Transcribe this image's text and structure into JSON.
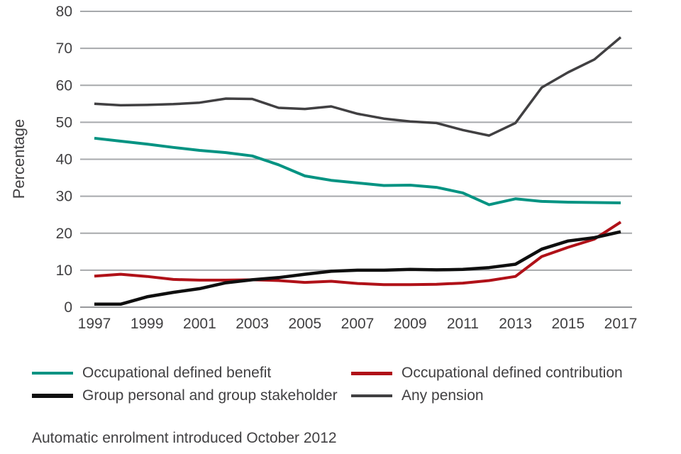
{
  "chart_data": {
    "type": "line",
    "title": "",
    "xlabel": "",
    "ylabel": "Percentage",
    "ylim": [
      0,
      80
    ],
    "yticks": [
      0,
      10,
      20,
      30,
      40,
      50,
      60,
      70,
      80
    ],
    "xtick_labels": [
      "1997",
      "1999",
      "2001",
      "2003",
      "2005",
      "2007",
      "2009",
      "2011",
      "2013",
      "2015",
      "2017"
    ],
    "x": [
      1997,
      1998,
      1999,
      2000,
      2001,
      2002,
      2003,
      2004,
      2005,
      2006,
      2007,
      2008,
      2009,
      2010,
      2011,
      2012,
      2013,
      2014,
      2015,
      2016,
      2017
    ],
    "grid": "horizontal",
    "legend_position": "bottom",
    "annotation": "Automatic enrolment introduced October 2012",
    "colors": {
      "grid": "#a7a9ac",
      "axis_text": "#414042"
    },
    "series": [
      {
        "name": "Occupational defined benefit",
        "color": "#029382",
        "values": [
          45.7,
          44.9,
          44.1,
          43.2,
          42.4,
          41.8,
          40.9,
          38.5,
          35.5,
          34.3,
          33.6,
          32.9,
          33.0,
          32.4,
          30.9,
          27.7,
          29.3,
          28.6,
          28.4,
          28.3,
          28.2
        ]
      },
      {
        "name": "Occupational defined contribution",
        "color": "#b01118",
        "values": [
          8.4,
          8.9,
          8.3,
          7.5,
          7.3,
          7.3,
          7.4,
          7.2,
          6.7,
          7.0,
          6.4,
          6.1,
          6.1,
          6.2,
          6.5,
          7.2,
          8.3,
          13.7,
          16.2,
          18.4,
          23.0
        ]
      },
      {
        "name": "Group personal and group stakeholder",
        "color": "#0f0f0f",
        "values": [
          0.8,
          0.8,
          2.8,
          4.0,
          5.0,
          6.6,
          7.4,
          8.0,
          8.9,
          9.7,
          10.0,
          10.0,
          10.2,
          10.1,
          10.2,
          10.7,
          11.6,
          15.7,
          17.9,
          18.8,
          20.4
        ]
      },
      {
        "name": "Any pension",
        "color": "#414042",
        "values": [
          55.0,
          54.6,
          54.7,
          54.9,
          55.3,
          56.4,
          56.3,
          53.9,
          53.6,
          54.3,
          52.3,
          51.0,
          50.2,
          49.8,
          47.9,
          46.4,
          49.8,
          59.4,
          63.5,
          67.0,
          73.0
        ]
      }
    ]
  }
}
